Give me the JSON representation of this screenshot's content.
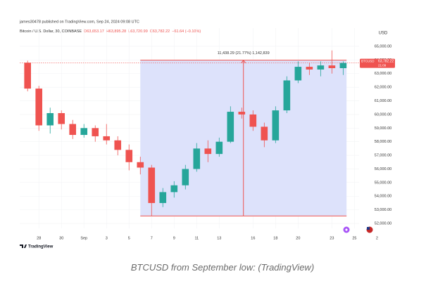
{
  "chart_data": {
    "type": "candlestick",
    "publisher": "james30478 published on TradingView.com, Sep 24, 2024 09:08 UTC",
    "symbol_line": "Bitcoin / U.S. Dollar, 30, COINBASE",
    "ohlc_legend": [
      {
        "text": "O63,653.17",
        "color": "#ef5350"
      },
      {
        "text": "H63,895.28",
        "color": "#ef5350"
      },
      {
        "text": "L63,720.99",
        "color": "#ef5350"
      },
      {
        "text": "C63,782.22",
        "color": "#ef5350"
      },
      {
        "text": "−61.64 (−0.10%)",
        "color": "#ef5350"
      }
    ],
    "axis_unit": "USD",
    "price_tag": {
      "symbol": "BTCUSD",
      "value": 63782.22,
      "label": "63,782.22",
      "countdown": "21:09",
      "color": "#ef5350"
    },
    "brand": "TradingView",
    "caption": "BTCUSD from September low: (TradingView)",
    "up_color": "#26a69a",
    "down_color": "#ef5350",
    "x": [
      0,
      1,
      2,
      3,
      4,
      5,
      6,
      7,
      8,
      9,
      10,
      11,
      12,
      13,
      14,
      15,
      16,
      17,
      18,
      19,
      20,
      21,
      22,
      23,
      24,
      25,
      26,
      27,
      28
    ],
    "open": [
      63800,
      61900,
      59200,
      60100,
      59300,
      58500,
      59000,
      58400,
      58100,
      57400,
      56500,
      56100,
      53500,
      54300,
      54800,
      56000,
      57500,
      57100,
      58000,
      60200,
      60000,
      59100,
      58100,
      60300,
      62500,
      63500,
      63300,
      63600,
      63400
    ],
    "high": [
      63950,
      62100,
      60500,
      60300,
      59600,
      59300,
      59200,
      59300,
      58400,
      57800,
      56900,
      56300,
      54600,
      55100,
      56300,
      57900,
      58100,
      58300,
      60600,
      60500,
      60300,
      59400,
      60600,
      62800,
      63900,
      63800,
      63900,
      64700,
      63900
    ],
    "low": [
      61700,
      58800,
      58600,
      58900,
      58200,
      58300,
      58000,
      57800,
      57000,
      55900,
      55600,
      52546,
      53200,
      53900,
      54500,
      55800,
      56500,
      56900,
      57900,
      59700,
      58800,
      57600,
      57900,
      60100,
      62300,
      62900,
      62800,
      63000,
      62900
    ],
    "close": [
      61900,
      59200,
      60100,
      59300,
      58500,
      59000,
      58400,
      58100,
      57400,
      56500,
      56100,
      53500,
      54300,
      54800,
      56000,
      57500,
      57100,
      58000,
      60200,
      60000,
      59100,
      58100,
      60300,
      62500,
      63500,
      63300,
      63600,
      63400,
      63782.22
    ],
    "measure": {
      "from": 10,
      "to": 28.3,
      "low": 52546,
      "high": 63984.29,
      "label": "11,438.29 (21.77%) 1,142,839",
      "color": "#ef5350",
      "fill": "#dde2fb"
    },
    "xlim": [
      -0.7,
      31.6
    ],
    "ylim": [
      51640,
      66340
    ],
    "xticks": [
      {
        "value": 1,
        "label": "28"
      },
      {
        "value": 3,
        "label": "30"
      },
      {
        "value": 5,
        "label": "Sep"
      },
      {
        "value": 7,
        "label": "3"
      },
      {
        "value": 9,
        "label": "5"
      },
      {
        "value": 11,
        "label": "7"
      },
      {
        "value": 13,
        "label": "9"
      },
      {
        "value": 15,
        "label": "11"
      },
      {
        "value": 17,
        "label": "13"
      },
      {
        "value": 20,
        "label": "16"
      },
      {
        "value": 22,
        "label": "18"
      },
      {
        "value": 24,
        "label": "20"
      },
      {
        "value": 27,
        "label": "23"
      },
      {
        "value": 29,
        "label": "25"
      },
      {
        "value": 31,
        "label": "2"
      }
    ],
    "yticks": [
      {
        "value": 52000,
        "label": "52,000.00"
      },
      {
        "value": 53000,
        "label": "53,000.00"
      },
      {
        "value": 54000,
        "label": "54,000.00"
      },
      {
        "value": 55000,
        "label": "55,000.00"
      },
      {
        "value": 56000,
        "label": "56,000.00"
      },
      {
        "value": 57000,
        "label": "57,000.00"
      },
      {
        "value": 58000,
        "label": "58,000.00"
      },
      {
        "value": 59000,
        "label": "59,000.00"
      },
      {
        "value": 60000,
        "label": "60,000.00"
      },
      {
        "value": 61000,
        "label": "61,000.00"
      },
      {
        "value": 62000,
        "label": "62,000.00"
      },
      {
        "value": 63000,
        "label": "63,000.00"
      },
      {
        "value": 64000,
        "label": "64,000.00"
      },
      {
        "value": 65000,
        "label": "65,000.00"
      }
    ]
  }
}
